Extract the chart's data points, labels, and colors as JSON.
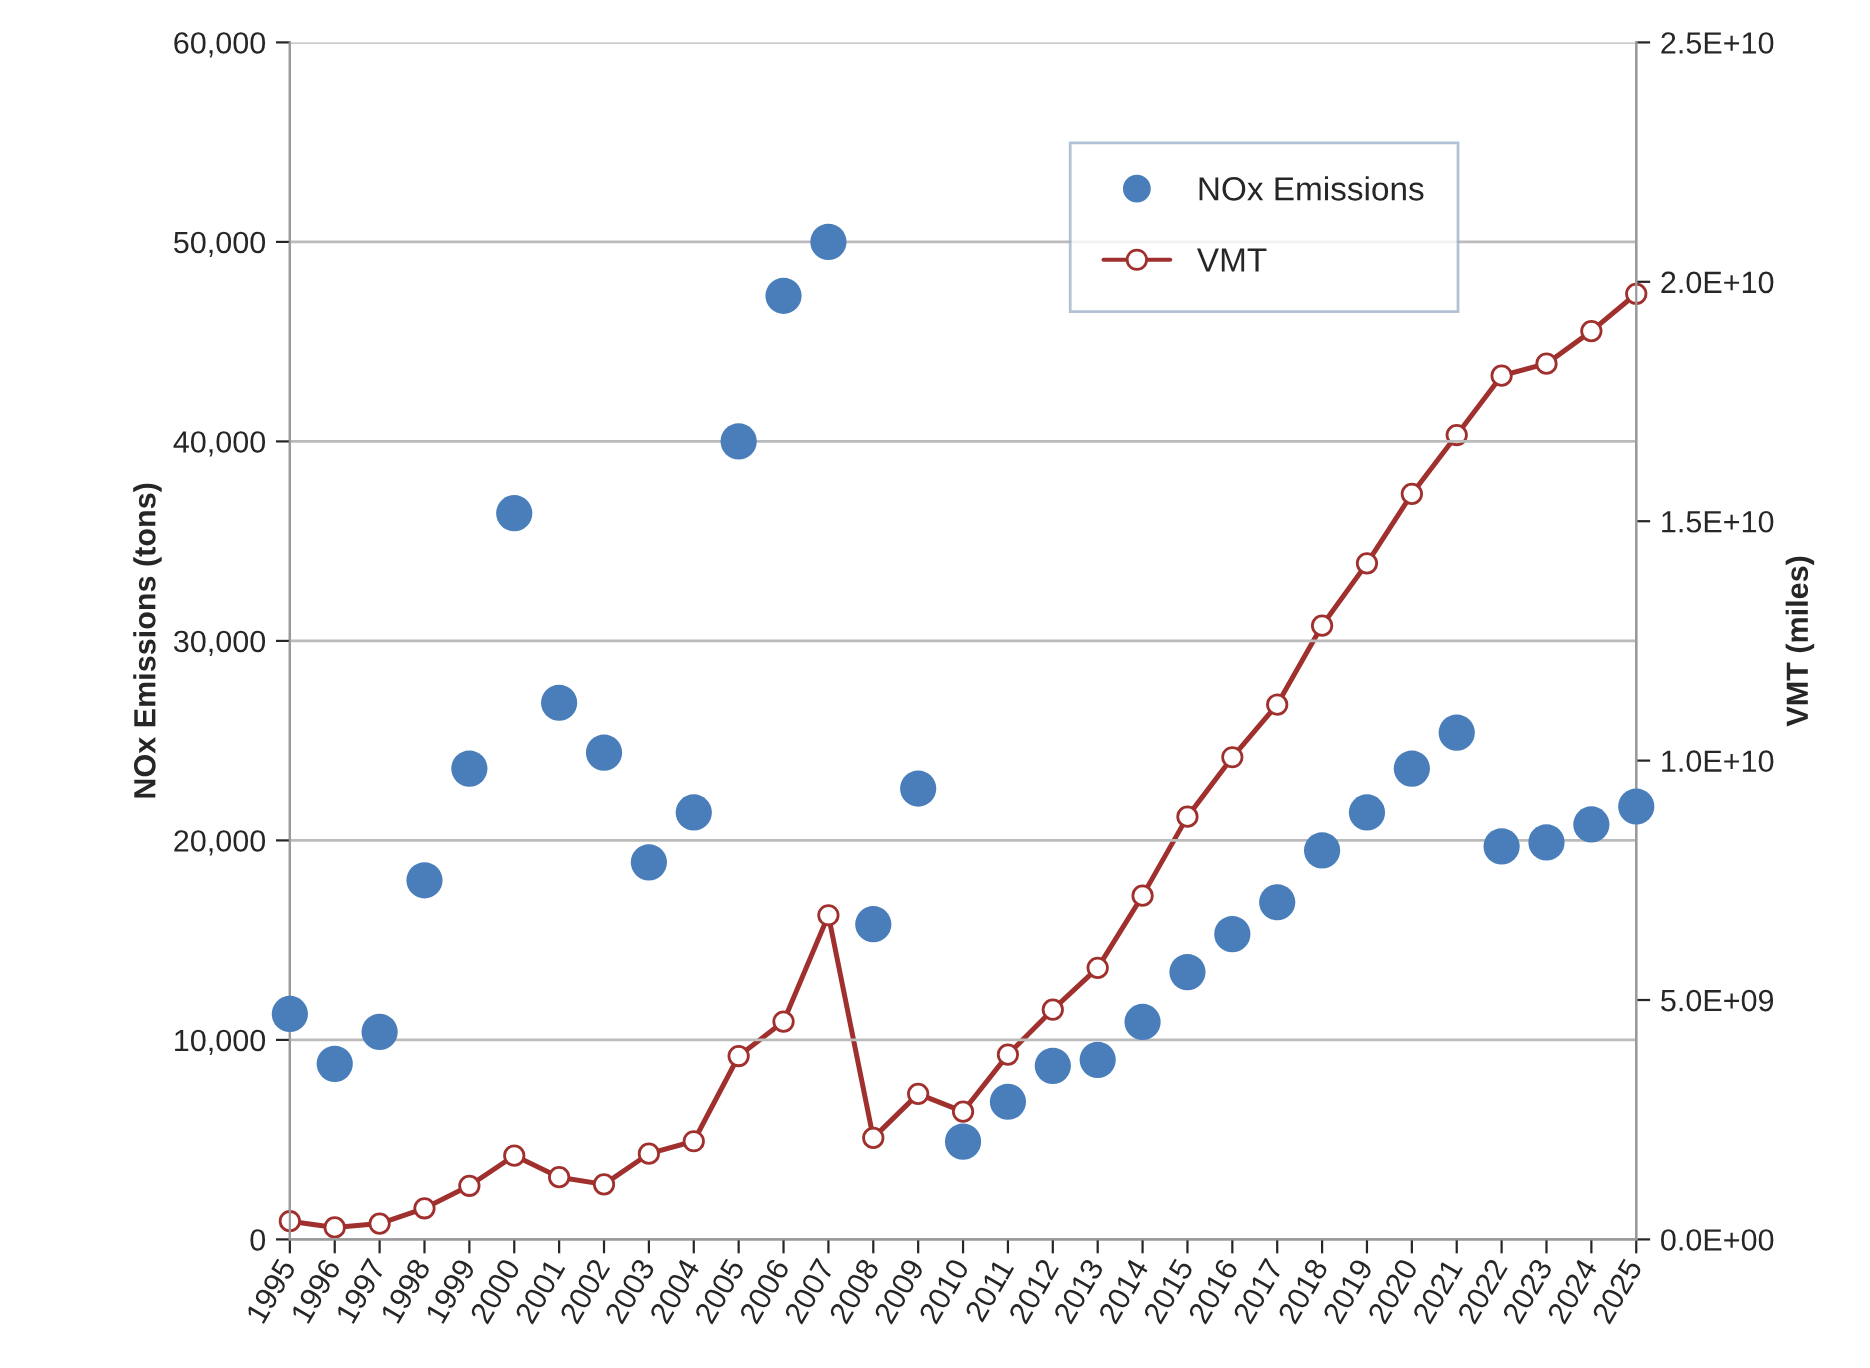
{
  "chart_data": {
    "type": "scatter",
    "categories": [
      "1995",
      "1996",
      "1997",
      "1998",
      "1999",
      "2000",
      "2001",
      "2002",
      "2003",
      "2004",
      "2005",
      "2006",
      "2007",
      "2008",
      "2009",
      "2010",
      "2011",
      "2012",
      "2013",
      "2014",
      "2015",
      "2016",
      "2017",
      "2018",
      "2019",
      "2020",
      "2021",
      "2022",
      "2023",
      "2024",
      "2025"
    ],
    "series": [
      {
        "name": "NOx Emissions",
        "color": "#4a7ebb",
        "marker": "circle",
        "values": [
          11300,
          8800,
          10400,
          18000,
          23600,
          36400,
          26900,
          24400,
          18900,
          21400,
          40000,
          47300,
          50000,
          15800,
          22600,
          4900,
          6900,
          8700,
          9000,
          10900,
          13400,
          15300,
          16900,
          19500,
          21400,
          23600,
          25400,
          19700,
          19900,
          20800,
          21700
        ]
      },
      {
        "name": "VMT",
        "type": "line",
        "axis": "y2",
        "color": "#a0302d",
        "marker": "circle",
        "line_style": "solid",
        "values": [
          380000000,
          250000000,
          330000000,
          650000000,
          1120000000,
          1750000000,
          1300000000,
          1150000000,
          1790000000,
          2050000000,
          3830000000,
          4550000000,
          6770000000,
          2120000000,
          3040000000,
          2670000000,
          3860000000,
          4800000000,
          5670000000,
          7180000000,
          8830000000,
          10070000000,
          11170000000,
          12820000000,
          14120000000,
          15570000000,
          16800000000,
          18040000000,
          18290000000,
          18970000000,
          19750000000
        ]
      }
    ],
    "ylabel": "NOx Emissions (tons)",
    "y2label": "VMT (miles)",
    "ylim": [
      0,
      60000
    ],
    "yticks": [
      {
        "value": 0,
        "label": "0"
      },
      {
        "value": 10000,
        "label": "10,000"
      },
      {
        "value": 20000,
        "label": "20,000"
      },
      {
        "value": 30000,
        "label": "30,000"
      },
      {
        "value": 40000,
        "label": "40,000"
      },
      {
        "value": 50000,
        "label": "50,000"
      },
      {
        "value": 60000,
        "label": "60,000"
      }
    ],
    "y2lim": [
      0,
      25000000000
    ],
    "y2ticks": [
      {
        "value": 0,
        "label": "0.0E+00"
      },
      {
        "value": 5000000000,
        "label": "5.0E+09"
      },
      {
        "value": 10000000000,
        "label": "1.0E+10"
      },
      {
        "value": 15000000000,
        "label": "1.5E+10"
      },
      {
        "value": 20000000000,
        "label": "2.0E+10"
      },
      {
        "value": 25000000000,
        "label": "2.5E+10"
      }
    ],
    "grid": "y",
    "legend": "top right"
  }
}
